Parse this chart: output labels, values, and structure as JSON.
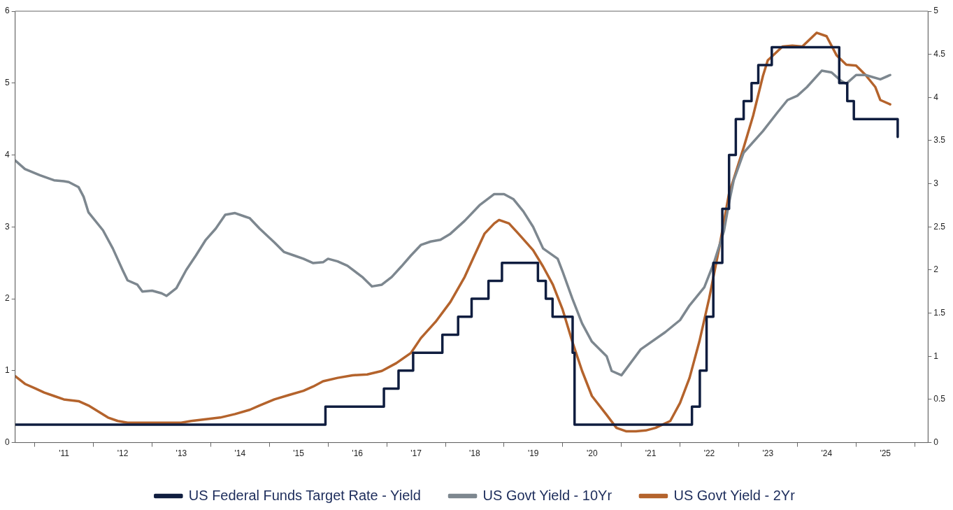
{
  "chart_data": {
    "type": "line",
    "xlim": [
      "2010-09-01",
      "2026-03-25"
    ],
    "xticks": [
      {
        "value": "2011-01-01",
        "label": null
      },
      {
        "value": "2011-07-02",
        "label": "'11"
      },
      {
        "value": "2012-01-01",
        "label": null
      },
      {
        "value": "2012-07-02",
        "label": "'12"
      },
      {
        "value": "2013-01-01",
        "label": null
      },
      {
        "value": "2013-07-02",
        "label": "'13"
      },
      {
        "value": "2014-01-01",
        "label": null
      },
      {
        "value": "2014-07-02",
        "label": "'14"
      },
      {
        "value": "2015-01-01",
        "label": null
      },
      {
        "value": "2015-07-02",
        "label": "'15"
      },
      {
        "value": "2016-01-01",
        "label": null
      },
      {
        "value": "2016-07-02",
        "label": "'16"
      },
      {
        "value": "2017-01-01",
        "label": null
      },
      {
        "value": "2017-07-02",
        "label": "'17"
      },
      {
        "value": "2018-01-01",
        "label": null
      },
      {
        "value": "2018-07-02",
        "label": "'18"
      },
      {
        "value": "2019-01-01",
        "label": null
      },
      {
        "value": "2019-07-02",
        "label": "'19"
      },
      {
        "value": "2020-01-01",
        "label": null
      },
      {
        "value": "2020-07-02",
        "label": "'20"
      },
      {
        "value": "2021-01-01",
        "label": null
      },
      {
        "value": "2021-07-02",
        "label": "'21"
      },
      {
        "value": "2022-01-01",
        "label": null
      },
      {
        "value": "2022-07-02",
        "label": "'22"
      },
      {
        "value": "2023-01-01",
        "label": null
      },
      {
        "value": "2023-07-02",
        "label": "'23"
      },
      {
        "value": "2024-01-01",
        "label": null
      },
      {
        "value": "2024-07-02",
        "label": "'24"
      },
      {
        "value": "2025-01-01",
        "label": null
      },
      {
        "value": "2025-07-02",
        "label": "'25"
      },
      {
        "value": "2026-01-01",
        "label": null
      }
    ],
    "ylim": [
      0,
      6
    ],
    "yticks": [
      0,
      1,
      2,
      3,
      4,
      5,
      6
    ],
    "y2lim": [
      0,
      5
    ],
    "y2ticks": [
      0,
      0.5,
      1,
      1.5,
      2,
      2.5,
      3,
      3.5,
      4,
      4.5,
      5
    ],
    "legend": "bottom",
    "series": [
      {
        "name": "US Federal Funds Target Rate - Yield",
        "type": "step",
        "color": "#0f1d3f",
        "x": [
          "2010-09-01",
          "2015-12-16",
          "2016-12-14",
          "2017-03-15",
          "2017-06-14",
          "2017-12-13",
          "2018-03-21",
          "2018-06-13",
          "2018-09-26",
          "2018-12-19",
          "2019-07-31",
          "2019-09-18",
          "2019-10-30",
          "2020-03-03",
          "2020-03-15",
          "2022-03-16",
          "2022-05-04",
          "2022-06-15",
          "2022-07-27",
          "2022-09-21",
          "2022-11-02",
          "2022-12-14",
          "2023-02-01",
          "2023-03-22",
          "2023-05-03",
          "2023-07-26",
          "2024-09-18",
          "2024-11-07",
          "2024-12-18",
          "2025-09-17"
        ],
        "values": [
          0.25,
          0.5,
          0.75,
          1,
          1.25,
          1.5,
          1.75,
          2,
          2.25,
          2.5,
          2.25,
          2,
          1.75,
          1.25,
          0.25,
          0.5,
          1,
          1.75,
          2.5,
          3.25,
          4,
          4.5,
          4.75,
          5,
          5.25,
          5.5,
          5,
          4.75,
          4.5,
          4.25
        ]
      },
      {
        "name": "US Govt Yield - 10Yr",
        "axis": "y2",
        "color": "#7d878f",
        "x": [
          "2010-09",
          "2010-11",
          "2011-02",
          "2011-05",
          "2011-07",
          "2011-08",
          "2011-10",
          "2011-11",
          "2011-12",
          "2012-03",
          "2012-05",
          "2012-07",
          "2012-08",
          "2012-10",
          "2012-11",
          "2013-01",
          "2013-03",
          "2013-04",
          "2013-06",
          "2013-08",
          "2013-10",
          "2013-12",
          "2014-02",
          "2014-04",
          "2014-06",
          "2014-08",
          "2014-09",
          "2014-11",
          "2015-02",
          "2015-04",
          "2015-06",
          "2015-08",
          "2015-10",
          "2015-12",
          "2016-01",
          "2016-03",
          "2016-05",
          "2016-08",
          "2016-10",
          "2016-12",
          "2017-02",
          "2017-04",
          "2017-06",
          "2017-08",
          "2017-10",
          "2017-12",
          "2018-02",
          "2018-05",
          "2018-08",
          "2018-11",
          "2019-01",
          "2019-03",
          "2019-05",
          "2019-07",
          "2019-09",
          "2019-12",
          "2020-01",
          "2020-03",
          "2020-05",
          "2020-07",
          "2020-10",
          "2020-11",
          "2021-01",
          "2021-05",
          "2021-10",
          "2022-01",
          "2022-03",
          "2022-06",
          "2022-08",
          "2022-10",
          "2022-11",
          "2022-12",
          "2023-02",
          "2023-06",
          "2023-09",
          "2023-11",
          "2024-01",
          "2024-03",
          "2024-06",
          "2024-08",
          "2024-10",
          "2024-11",
          "2025-01",
          "2025-03",
          "2025-06",
          "2025-08"
        ],
        "values": [
          3.27,
          3.17,
          3.1,
          3.04,
          3.03,
          3.02,
          2.96,
          2.85,
          2.67,
          2.46,
          2.25,
          2.0,
          1.88,
          1.83,
          1.75,
          1.76,
          1.73,
          1.7,
          1.79,
          2.0,
          2.17,
          2.35,
          2.48,
          2.64,
          2.66,
          2.62,
          2.6,
          2.48,
          2.32,
          2.21,
          2.17,
          2.13,
          2.08,
          2.09,
          2.13,
          2.1,
          2.05,
          1.92,
          1.81,
          1.83,
          1.92,
          2.04,
          2.17,
          2.29,
          2.33,
          2.35,
          2.42,
          2.57,
          2.75,
          2.88,
          2.88,
          2.82,
          2.68,
          2.5,
          2.25,
          2.13,
          1.98,
          1.67,
          1.38,
          1.17,
          1.0,
          0.83,
          0.78,
          1.08,
          1.28,
          1.42,
          1.59,
          1.8,
          2.09,
          2.45,
          2.77,
          3.04,
          3.36,
          3.61,
          3.83,
          3.97,
          4.02,
          4.12,
          4.31,
          4.29,
          4.19,
          4.16,
          4.26,
          4.26,
          4.21,
          4.26
        ]
      },
      {
        "name": "US Govt Yield - 2Yr",
        "axis": "y2",
        "color": "#b4632c",
        "x": [
          "2010-09",
          "2010-11",
          "2011-01",
          "2011-03",
          "2011-05",
          "2011-07",
          "2011-10",
          "2011-12",
          "2012-02",
          "2012-04",
          "2012-06",
          "2012-08",
          "2012-10",
          "2013-01",
          "2013-03",
          "2013-05",
          "2013-07",
          "2013-09",
          "2013-12",
          "2014-03",
          "2014-06",
          "2014-09",
          "2014-11",
          "2015-02",
          "2015-05",
          "2015-08",
          "2015-10",
          "2015-12",
          "2016-03",
          "2016-06",
          "2016-09",
          "2016-12",
          "2017-03",
          "2017-06",
          "2017-08",
          "2017-11",
          "2018-02",
          "2018-05",
          "2018-07",
          "2018-09",
          "2018-11",
          "2018-12",
          "2019-02",
          "2019-04",
          "2019-07",
          "2019-09",
          "2019-11",
          "2020-01",
          "2020-03",
          "2020-05",
          "2020-07",
          "2020-10",
          "2020-12",
          "2021-02",
          "2021-04",
          "2021-06",
          "2021-08",
          "2021-11",
          "2022-01",
          "2022-03",
          "2022-05",
          "2022-07",
          "2022-09",
          "2022-11",
          "2023-02",
          "2023-04",
          "2023-06",
          "2023-07",
          "2023-10",
          "2023-12",
          "2024-02",
          "2024-05",
          "2024-07",
          "2024-09",
          "2024-11",
          "2025-01",
          "2025-03",
          "2025-05",
          "2025-06",
          "2025-08"
        ],
        "values": [
          0.77,
          0.68,
          0.63,
          0.58,
          0.54,
          0.5,
          0.48,
          0.43,
          0.36,
          0.29,
          0.25,
          0.23,
          0.23,
          0.23,
          0.23,
          0.23,
          0.23,
          0.25,
          0.27,
          0.29,
          0.33,
          0.38,
          0.43,
          0.5,
          0.55,
          0.6,
          0.65,
          0.71,
          0.75,
          0.78,
          0.79,
          0.83,
          0.92,
          1.04,
          1.21,
          1.4,
          1.63,
          1.92,
          2.17,
          2.42,
          2.54,
          2.58,
          2.54,
          2.42,
          2.23,
          2.04,
          1.83,
          1.54,
          1.17,
          0.83,
          0.54,
          0.32,
          0.17,
          0.13,
          0.13,
          0.14,
          0.17,
          0.25,
          0.46,
          0.75,
          1.17,
          1.67,
          2.25,
          2.88,
          3.42,
          3.79,
          4.25,
          4.43,
          4.59,
          4.6,
          4.59,
          4.75,
          4.71,
          4.49,
          4.38,
          4.37,
          4.26,
          4.12,
          3.97,
          3.92
        ]
      }
    ]
  }
}
